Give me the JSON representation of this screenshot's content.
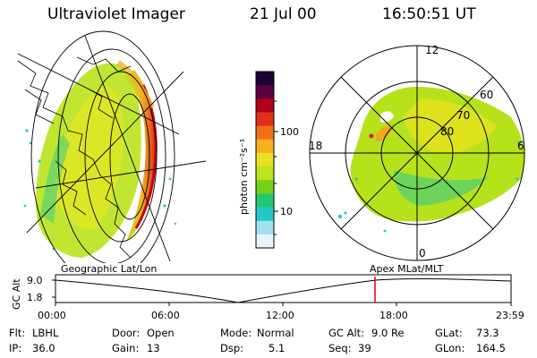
{
  "header": {
    "instrument": "Ultraviolet Imager",
    "date": "21 Jul 00",
    "time": "16:50:51 UT"
  },
  "colorbar": {
    "unit_label": "photon cm⁻²s⁻¹",
    "ticks": [
      "100",
      "10"
    ],
    "colors": [
      "#1a0033",
      "#5a0040",
      "#b0001a",
      "#e0301a",
      "#f07018",
      "#f7b020",
      "#e8e020",
      "#bfe21a",
      "#74d21a",
      "#22c86e",
      "#22c8c8",
      "#a0e0f0",
      "#e8f4f8"
    ]
  },
  "polar_plot": {
    "mlt_labels": {
      "top": "12",
      "left": "18",
      "right": "6",
      "bottom": "0"
    },
    "lat_labels": [
      "60",
      "70",
      "80"
    ]
  },
  "left_panel_label": "Geographic Lat/Lon",
  "right_panel_label": "Apex MLat/MLT",
  "altitude_plot": {
    "ylabel": "GC Alt",
    "yticks": [
      "9.0",
      "1.8"
    ],
    "xticks": [
      "00:00",
      "06:00",
      "12:00",
      "18:00",
      "23:59"
    ],
    "marker_color": "#e00000"
  },
  "info": {
    "filter_label": "Flt:",
    "filter_value": "LBHL",
    "door_label": "Door:",
    "door_value": "Open",
    "mode_label": "Mode:",
    "mode_value": "Normal",
    "gcalt_label": "GC Alt:",
    "gcalt_value": "9.0 Re",
    "glat_label": "GLat:",
    "glat_value": "73.3",
    "ip_label": "IP:",
    "ip_value": "36.0",
    "gain_label": "Gain:",
    "gain_value": "13",
    "dsp_label": "Dsp:",
    "dsp_value": "5.1",
    "seq_label": "Seq:",
    "seq_value": "39",
    "glon_label": "GLon:",
    "glon_value": "164.5"
  }
}
